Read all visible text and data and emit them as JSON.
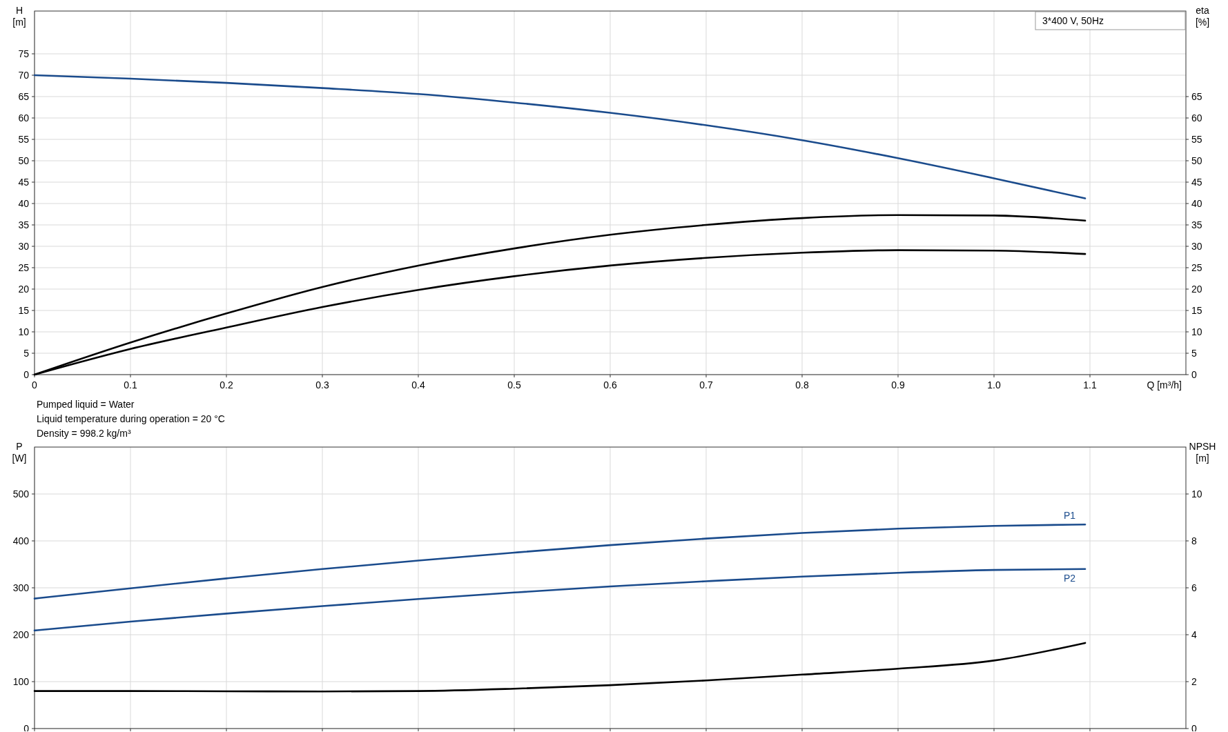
{
  "chart_data": [
    {
      "type": "line",
      "title": "3*400 V, 50Hz",
      "xlabel": "Q [m³/h]",
      "ylabel": "H [m]",
      "y2label": "eta [%]",
      "xlim": [
        0,
        1.2
      ],
      "xticks": [
        0,
        0.1,
        0.2,
        0.3,
        0.4,
        0.5,
        0.6,
        0.7,
        0.8,
        0.9,
        {
          "value": 1,
          "label": "1.0"
        },
        1.1
      ],
      "ylim": [
        0,
        85
      ],
      "yticks": [
        0,
        5,
        10,
        15,
        20,
        25,
        30,
        35,
        40,
        45,
        50,
        55,
        60,
        65,
        70,
        75
      ],
      "y2lim": [
        0,
        85
      ],
      "y2ticks": [
        0,
        5,
        10,
        15,
        20,
        25,
        30,
        35,
        40,
        45,
        50,
        55,
        60,
        65
      ],
      "grid": true,
      "x": [
        0,
        0.1,
        0.2,
        0.3,
        0.4,
        0.5,
        0.6,
        0.7,
        0.8,
        0.9,
        1.0,
        1.095
      ],
      "series": [
        {
          "color": "#1a4b8c",
          "values": [
            70,
            69.2,
            68.2,
            67,
            65.6,
            63.6,
            61.2,
            58.3,
            54.8,
            50.6,
            45.9,
            41.2
          ]
        },
        {
          "color": "#000000",
          "axis": "y2",
          "values": [
            0,
            7.5,
            14.3,
            20.5,
            25.5,
            29.5,
            32.7,
            35,
            36.6,
            37.3,
            37.2,
            36
          ]
        },
        {
          "color": "#000000",
          "axis": "y2",
          "values": [
            0,
            6,
            11,
            15.8,
            19.8,
            23,
            25.5,
            27.3,
            28.5,
            29.1,
            29,
            28.2
          ]
        }
      ],
      "annotations": [
        "Pumped liquid = Water",
        "Liquid temperature during operation = 20 °C",
        "Density = 998.2 kg/m³"
      ]
    },
    {
      "type": "line",
      "ylabel": "P [W]",
      "y2label": "NPSH [m]",
      "xlim": [
        0,
        1.2
      ],
      "xticks": [
        {
          "value": 0,
          "label": null
        },
        {
          "value": 0.1,
          "label": null
        },
        {
          "value": 0.2,
          "label": null
        },
        {
          "value": 0.3,
          "label": null
        },
        {
          "value": 0.4,
          "label": null
        },
        {
          "value": 0.5,
          "label": null
        },
        {
          "value": 0.6,
          "label": null
        },
        {
          "value": 0.7,
          "label": null
        },
        {
          "value": 0.8,
          "label": null
        },
        {
          "value": 0.9,
          "label": null
        },
        {
          "value": 1,
          "label": null
        },
        {
          "value": 1.1,
          "label": null
        }
      ],
      "ylim": [
        0,
        600
      ],
      "yticks": [
        0,
        100,
        200,
        300,
        400,
        500
      ],
      "y2lim": [
        0,
        12
      ],
      "y2ticks": [
        0,
        2,
        4,
        6,
        8,
        10
      ],
      "grid": true,
      "tick_labels": "y",
      "x": [
        0,
        0.1,
        0.2,
        0.3,
        0.4,
        0.5,
        0.6,
        0.7,
        0.8,
        0.9,
        1.0,
        1.095
      ],
      "series": [
        {
          "name": "P1",
          "color": "#1a4b8c",
          "values": [
            277,
            299,
            320,
            340,
            358,
            375,
            391,
            405,
            417,
            426,
            432,
            435
          ]
        },
        {
          "name": "P2",
          "color": "#1a4b8c",
          "values": [
            209,
            228,
            245,
            261,
            276,
            290,
            303,
            314,
            324,
            332,
            338,
            340
          ]
        },
        {
          "color": "#000000",
          "axis": "y2",
          "values": [
            1.6,
            1.6,
            1.59,
            1.58,
            1.6,
            1.7,
            1.85,
            2.05,
            2.3,
            2.55,
            2.9,
            3.65
          ]
        }
      ]
    }
  ]
}
